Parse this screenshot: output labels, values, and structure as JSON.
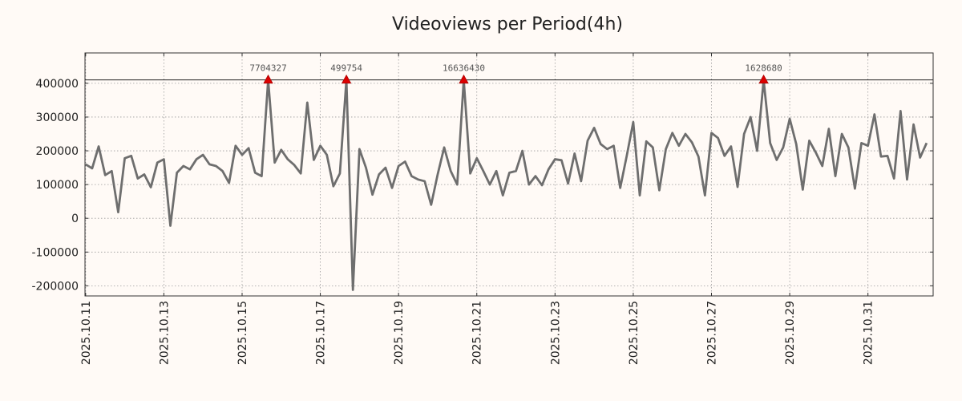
{
  "chart_data": {
    "type": "line",
    "title": "Videoviews per Period(4h)",
    "xlabel": "",
    "ylabel": "",
    "ylim": [
      -230000,
      490000
    ],
    "xlim": [
      -0.1,
      130.0
    ],
    "grid": true,
    "legend": "none",
    "y_ticks": [
      400000,
      300000,
      200000,
      100000,
      0,
      -100000,
      -200000
    ],
    "y_tick_labels": [
      "400000",
      "300000",
      "200000",
      "100000",
      "0",
      "-100000",
      "-200000"
    ],
    "x_ticks": [
      0,
      12,
      24,
      36,
      48,
      60,
      72,
      84,
      96,
      108,
      120
    ],
    "x_tick_labels": [
      "2025.10.11",
      "2025.10.13",
      "2025.10.15",
      "2025.10.17",
      "2025.10.19",
      "2025.10.21",
      "2025.10.23",
      "2025.10.25",
      "2025.10.27",
      "2025.10.29",
      "2025.10.31"
    ],
    "cap_value": 410000,
    "series": [
      {
        "name": "Videoviews",
        "color": "#6e6e6e",
        "values": [
          160000,
          148000,
          213000,
          128000,
          140000,
          18000,
          178000,
          185000,
          118000,
          130000,
          92000,
          165000,
          175000,
          -22000,
          135000,
          155000,
          145000,
          175000,
          188000,
          160000,
          155000,
          140000,
          105000,
          215000,
          188000,
          208000,
          135000,
          125000,
          410000,
          165000,
          203000,
          175000,
          158000,
          133000,
          343000,
          173000,
          215000,
          188000,
          95000,
          133000,
          410000,
          -212000,
          205000,
          150000,
          70000,
          130000,
          150000,
          90000,
          155000,
          168000,
          125000,
          115000,
          110000,
          40000,
          130000,
          210000,
          140000,
          100000,
          410000,
          133000,
          178000,
          140000,
          100000,
          140000,
          68000,
          135000,
          140000,
          200000,
          100000,
          125000,
          98000,
          145000,
          175000,
          172000,
          103000,
          192000,
          110000,
          230000,
          268000,
          220000,
          205000,
          215000,
          90000,
          185000,
          285000,
          68000,
          228000,
          210000,
          83000,
          205000,
          253000,
          215000,
          250000,
          225000,
          183000,
          68000,
          253000,
          238000,
          185000,
          213000,
          93000,
          250000,
          300000,
          200000,
          410000,
          223000,
          173000,
          210000,
          295000,
          220000,
          85000,
          230000,
          195000,
          155000,
          265000,
          125000,
          250000,
          210000,
          88000,
          223000,
          215000,
          308000,
          183000,
          185000,
          118000,
          318000,
          115000,
          278000,
          180000,
          223000
        ]
      }
    ],
    "peaks": [
      {
        "index": 28,
        "label": "7704327"
      },
      {
        "index": 40,
        "label": "499754"
      },
      {
        "index": 58,
        "label": "16636430"
      },
      {
        "index": 104,
        "label": "1628680"
      }
    ]
  },
  "colors": {
    "background": "#fffaf6",
    "line": "#6e6e6e",
    "marker": "#dd0000",
    "grid": "#9a9a9a"
  }
}
